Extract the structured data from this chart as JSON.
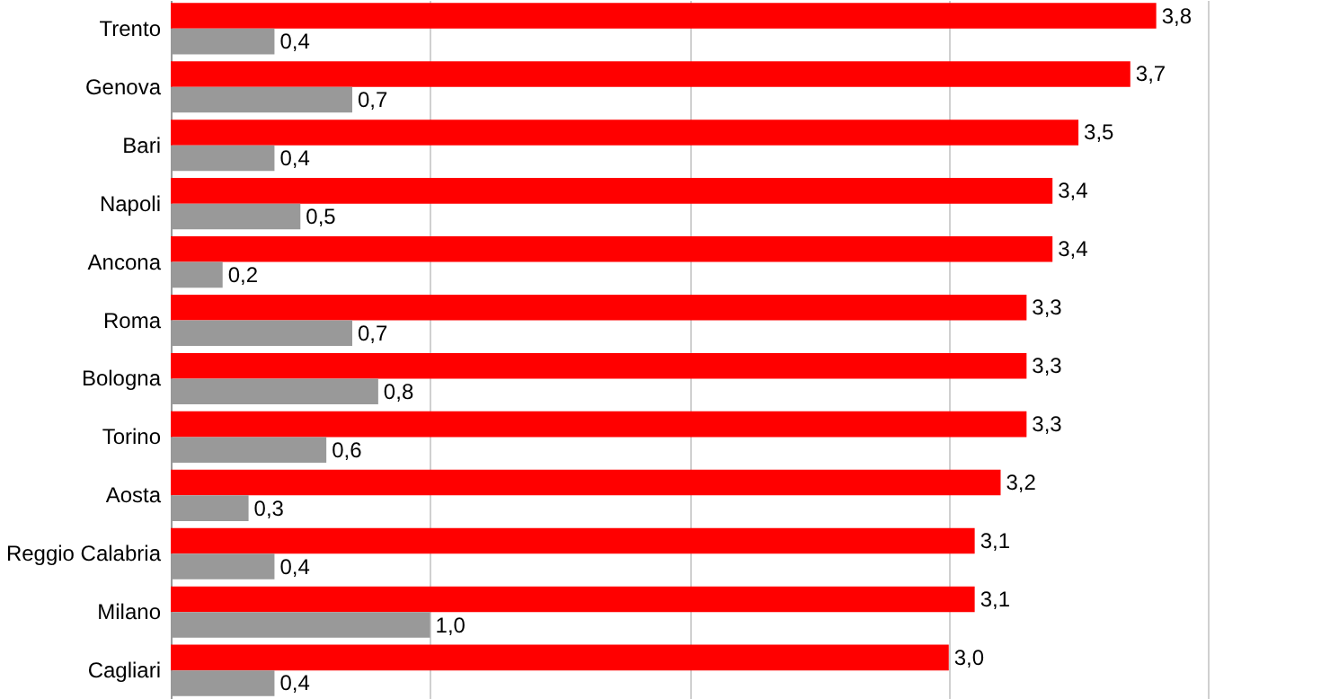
{
  "chart_data": {
    "type": "bar",
    "orientation": "horizontal",
    "categories": [
      "Trento",
      "Genova",
      "Bari",
      "Napoli",
      "Ancona",
      "Roma",
      "Bologna",
      "Torino",
      "Aosta",
      "Reggio Calabria",
      "Milano",
      "Cagliari"
    ],
    "series": [
      {
        "color": "#ff0000",
        "values": [
          3.8,
          3.7,
          3.5,
          3.4,
          3.4,
          3.3,
          3.3,
          3.3,
          3.2,
          3.1,
          3.1,
          3.0
        ],
        "value_labels": [
          "3,8",
          "3,7",
          "3,5",
          "3,4",
          "3,4",
          "3,3",
          "3,3",
          "3,3",
          "3,2",
          "3,1",
          "3,1",
          "3,0"
        ]
      },
      {
        "color": "#999999",
        "values": [
          0.4,
          0.7,
          0.4,
          0.5,
          0.2,
          0.7,
          0.8,
          0.6,
          0.3,
          0.4,
          1.0,
          0.4
        ],
        "value_labels": [
          "0,4",
          "0,7",
          "0,4",
          "0,5",
          "0,2",
          "0,7",
          "0,8",
          "0,6",
          "0,3",
          "0,4",
          "1,0",
          "0,4"
        ]
      }
    ],
    "xlim": [
      0,
      4.47
    ],
    "xticks": [
      {
        "value": 1,
        "label": null
      },
      {
        "value": 2,
        "label": null
      },
      {
        "value": 3,
        "label": null
      },
      {
        "value": 4,
        "label": null
      }
    ],
    "grid": "x",
    "tick_labels": "y"
  }
}
